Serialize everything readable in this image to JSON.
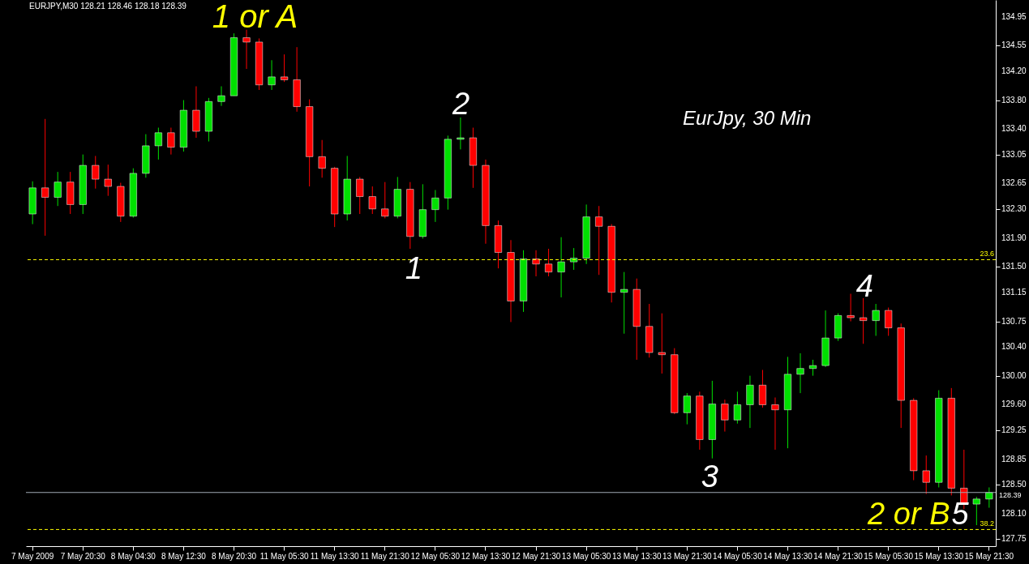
{
  "chart_data": {
    "type": "candlestick",
    "title": "EURJPY,M30  128.21 128.46 128.18 128.39",
    "categories": [
      "7 May 2009",
      null,
      null,
      null,
      "7 May 20:30",
      null,
      null,
      null,
      "8 May 04:30",
      null,
      null,
      null,
      "8 May 12:30",
      null,
      null,
      null,
      "8 May 20:30",
      null,
      null,
      null,
      "11 May 05:30",
      null,
      null,
      null,
      "11 May 13:30",
      null,
      null,
      null,
      "11 May 21:30",
      null,
      null,
      null,
      "12 May 05:30",
      null,
      null,
      null,
      "12 May 13:30",
      null,
      null,
      null,
      "12 May 21:30",
      null,
      null,
      null,
      "13 May 05:30",
      null,
      null,
      null,
      "13 May 13:30",
      null,
      null,
      null,
      "13 May 21:30",
      null,
      null,
      null,
      "14 May 05:30",
      null,
      null,
      null,
      "14 May 13:30",
      null,
      null,
      null,
      "14 May 21:30",
      null,
      null,
      null,
      "15 May 05:30",
      null,
      null,
      null,
      "15 May 13:30",
      null,
      null,
      null,
      "15 May 21:30"
    ],
    "ohlc": [
      [
        132.23,
        132.68,
        132.09,
        132.59
      ],
      [
        132.59,
        133.54,
        131.93,
        132.46
      ],
      [
        132.46,
        132.81,
        132.34,
        132.67
      ],
      [
        132.67,
        132.81,
        132.23,
        132.36
      ],
      [
        132.36,
        133.05,
        132.23,
        132.9
      ],
      [
        132.9,
        133.03,
        132.58,
        132.71
      ],
      [
        132.71,
        132.91,
        132.48,
        132.61
      ],
      [
        132.61,
        132.66,
        132.12,
        132.2
      ],
      [
        132.2,
        132.86,
        132.18,
        132.79
      ],
      [
        132.79,
        133.33,
        132.73,
        133.17
      ],
      [
        133.17,
        133.42,
        132.98,
        133.35
      ],
      [
        133.35,
        133.42,
        133.05,
        133.15
      ],
      [
        133.15,
        133.8,
        133.09,
        133.66
      ],
      [
        133.66,
        133.99,
        133.28,
        133.37
      ],
      [
        133.37,
        133.83,
        133.23,
        133.78
      ],
      [
        133.78,
        133.99,
        133.72,
        133.86
      ],
      [
        133.86,
        134.72,
        133.86,
        134.66
      ],
      [
        134.66,
        134.77,
        134.23,
        134.6
      ],
      [
        134.6,
        134.65,
        133.94,
        134.01
      ],
      [
        134.01,
        134.35,
        133.94,
        134.12
      ],
      [
        134.12,
        134.43,
        134.05,
        134.08
      ],
      [
        134.08,
        134.53,
        133.64,
        133.71
      ],
      [
        133.71,
        133.81,
        132.61,
        133.02
      ],
      [
        133.02,
        133.25,
        132.73,
        132.86
      ],
      [
        132.86,
        132.88,
        132.05,
        132.23
      ],
      [
        132.23,
        133.03,
        132.14,
        132.71
      ],
      [
        132.71,
        132.74,
        132.23,
        132.47
      ],
      [
        132.47,
        132.61,
        132.23,
        132.3
      ],
      [
        132.3,
        132.67,
        132.17,
        132.2
      ],
      [
        132.2,
        132.74,
        132.17,
        132.57
      ],
      [
        132.57,
        132.67,
        131.75,
        131.92
      ],
      [
        131.92,
        132.64,
        131.89,
        132.29
      ],
      [
        132.29,
        132.56,
        132.12,
        132.45
      ],
      [
        132.45,
        133.31,
        132.29,
        133.26
      ],
      [
        133.26,
        133.56,
        133.12,
        133.28
      ],
      [
        133.28,
        133.42,
        132.59,
        132.9
      ],
      [
        132.9,
        132.98,
        131.82,
        132.07
      ],
      [
        132.07,
        132.14,
        131.48,
        131.7
      ],
      [
        131.7,
        131.87,
        130.74,
        131.03
      ],
      [
        131.03,
        131.73,
        130.88,
        131.61
      ],
      [
        131.61,
        131.73,
        131.37,
        131.54
      ],
      [
        131.54,
        131.75,
        131.37,
        131.43
      ],
      [
        131.43,
        131.91,
        131.08,
        131.57
      ],
      [
        131.57,
        131.76,
        131.46,
        131.62
      ],
      [
        131.62,
        132.36,
        131.54,
        132.19
      ],
      [
        132.19,
        132.34,
        131.39,
        132.06
      ],
      [
        132.06,
        132.09,
        131.01,
        131.15
      ],
      [
        131.15,
        131.43,
        130.58,
        131.19
      ],
      [
        131.19,
        131.34,
        130.22,
        130.68
      ],
      [
        130.68,
        130.99,
        130.25,
        130.32
      ],
      [
        130.32,
        130.86,
        130.03,
        130.29
      ],
      [
        130.29,
        130.38,
        129.47,
        129.49
      ],
      [
        129.49,
        129.76,
        129.33,
        129.72
      ],
      [
        129.72,
        129.78,
        128.98,
        129.12
      ],
      [
        129.12,
        129.93,
        128.86,
        129.61
      ],
      [
        129.61,
        129.67,
        129.23,
        129.39
      ],
      [
        129.39,
        129.78,
        129.34,
        129.6
      ],
      [
        129.6,
        130.0,
        129.28,
        129.87
      ],
      [
        129.87,
        130.08,
        129.56,
        129.6
      ],
      [
        129.6,
        129.7,
        128.98,
        129.53
      ],
      [
        129.53,
        130.26,
        129.0,
        130.02
      ],
      [
        130.02,
        130.31,
        129.76,
        130.1
      ],
      [
        130.1,
        130.22,
        130.0,
        130.14
      ],
      [
        130.14,
        130.9,
        130.12,
        130.52
      ],
      [
        130.52,
        130.86,
        130.48,
        130.83
      ],
      [
        130.83,
        131.13,
        130.75,
        130.8
      ],
      [
        130.8,
        131.07,
        130.44,
        130.76
      ],
      [
        130.76,
        130.99,
        130.55,
        130.9
      ],
      [
        130.9,
        130.94,
        130.55,
        130.66
      ],
      [
        130.66,
        130.72,
        129.28,
        129.66
      ],
      [
        129.66,
        129.69,
        128.56,
        128.69
      ],
      [
        128.69,
        128.9,
        128.37,
        128.53
      ],
      [
        128.53,
        129.8,
        128.46,
        129.69
      ],
      [
        129.69,
        129.83,
        128.35,
        128.45
      ],
      [
        128.45,
        128.98,
        128.16,
        128.23
      ],
      [
        128.23,
        128.33,
        127.94,
        128.3
      ],
      [
        128.3,
        128.46,
        128.18,
        128.39
      ]
    ],
    "colors": [
      "#00e000",
      "#ff0000",
      "#00e000",
      "#ff0000",
      "#00e000",
      "#ff0000",
      "#ff0000",
      "#ff0000",
      "#00e000",
      "#00e000",
      "#00e000",
      "#ff0000",
      "#00e000",
      "#ff0000",
      "#00e000",
      "#00e000",
      "#00e000",
      "#ff0000",
      "#ff0000",
      "#00e000",
      "#ff0000",
      "#ff0000",
      "#ff0000",
      "#ff0000",
      "#ff0000",
      "#00e000",
      "#ff0000",
      "#ff0000",
      "#ff0000",
      "#00e000",
      "#ff0000",
      "#00e000",
      "#00e000",
      "#00e000",
      "#00e000",
      "#ff0000",
      "#ff0000",
      "#ff0000",
      "#ff0000",
      "#00e000",
      "#ff0000",
      "#ff0000",
      "#00e000",
      "#00e000",
      "#00e000",
      "#ff0000",
      "#ff0000",
      "#00e000",
      "#ff0000",
      "#ff0000",
      "#ff0000",
      "#ff0000",
      "#00e000",
      "#ff0000",
      "#00e000",
      "#ff0000",
      "#00e000",
      "#00e000",
      "#ff0000",
      "#ff0000",
      "#00e000",
      "#00e000",
      "#00e000",
      "#00e000",
      "#00e000",
      "#ff0000",
      "#ff0000",
      "#00e000",
      "#ff0000",
      "#ff0000",
      "#ff0000",
      "#ff0000",
      "#00e000",
      "#ff0000",
      "#ff0000",
      "#00e000",
      "#00e000"
    ],
    "ylim": [
      127.65,
      135.18
    ],
    "yticks": [
      127.75,
      {
        "value": 128.1,
        "label": "128.10"
      },
      {
        "value": 128.5,
        "label": "128.50"
      },
      128.85,
      129.25,
      {
        "value": 129.6,
        "label": "129.60"
      },
      {
        "value": 130.0,
        "label": "130.00"
      },
      {
        "value": 130.4,
        "label": "130.40"
      },
      130.75,
      131.15,
      {
        "value": 131.5,
        "label": "131.50"
      },
      {
        "value": 131.9,
        "label": "131.90"
      },
      {
        "value": 132.3,
        "label": "132.30"
      },
      132.65,
      133.05,
      {
        "value": 133.4,
        "label": "133.40"
      },
      {
        "value": 133.8,
        "label": "133.80"
      },
      {
        "value": 134.2,
        "label": "134.20"
      },
      134.55,
      134.95
    ],
    "ref_lines": [
      {
        "axis": "y",
        "value": 131.6,
        "color": "#ffff00",
        "line_style": "dashed"
      },
      {
        "axis": "y",
        "value": 127.88,
        "color": "#ffff00",
        "line_style": "dashed"
      },
      {
        "axis": "y",
        "value": 128.39,
        "label": "128.39",
        "color": "#a0aab4",
        "line_style": "solid"
      }
    ],
    "annotations": [
      "1 or A",
      "2",
      "1",
      "3",
      "4",
      "5",
      "2 or B",
      "EurJpy, 30 Min",
      {
        "text": "23.6",
        "y": 131.6
      },
      {
        "text": "38.2",
        "y": 127.88
      }
    ]
  }
}
